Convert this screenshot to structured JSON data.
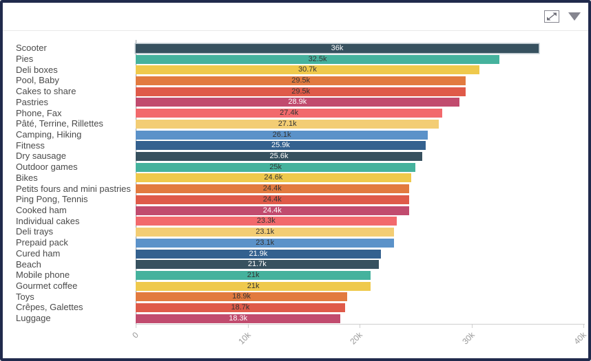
{
  "header": {
    "icons": [
      {
        "name": "maximize-icon"
      },
      {
        "name": "caret-down-icon"
      }
    ]
  },
  "colors": {
    "frame_border": "#202a4c",
    "axis_line": "#cfcfcf",
    "axis_vertical_line": "#9aa0a6",
    "axis_text": "#999999",
    "category_text": "#4a4a4a",
    "icon_gray": "#85858f",
    "highlight_stroke": "#b7c3ca"
  },
  "chart_data": {
    "type": "bar",
    "orientation": "horizontal",
    "title": "",
    "xlabel": "",
    "ylabel": "",
    "grid": false,
    "legend": "none",
    "value_label_position": "centered-on-bar",
    "x_axis": {
      "min": 0,
      "max": 40000,
      "ticks": [
        "0",
        "10k",
        "20k",
        "30k",
        "40k"
      ],
      "tick_values": [
        0,
        10000,
        20000,
        30000,
        40000
      ],
      "tick_rotation_deg": -45
    },
    "bars": [
      {
        "category": "Scooter",
        "value": 36000,
        "label": "36k",
        "color": "#37515f",
        "label_color": "#ffffff",
        "highlighted": true
      },
      {
        "category": "Pies",
        "value": 32500,
        "label": "32.5k",
        "color": "#45b29d",
        "label_color": "#333333",
        "highlighted": false
      },
      {
        "category": "Deli boxes",
        "value": 30700,
        "label": "30.7k",
        "color": "#efc94c",
        "label_color": "#333333",
        "highlighted": false
      },
      {
        "category": "Pool, Baby",
        "value": 29500,
        "label": "29.5k",
        "color": "#e27a3f",
        "label_color": "#333333",
        "highlighted": false
      },
      {
        "category": "Cakes to share",
        "value": 29500,
        "label": "29.5k",
        "color": "#df5a49",
        "label_color": "#333333",
        "highlighted": false
      },
      {
        "category": "Pastries",
        "value": 28900,
        "label": "28.9k",
        "color": "#c14b6e",
        "label_color": "#ffffff",
        "highlighted": false
      },
      {
        "category": "Phone, Fax",
        "value": 27400,
        "label": "27.4k",
        "color": "#f2696c",
        "label_color": "#333333",
        "highlighted": false
      },
      {
        "category": "Pâté, Terrine, Rillettes",
        "value": 27100,
        "label": "27.1k",
        "color": "#f3cd74",
        "label_color": "#333333",
        "highlighted": false
      },
      {
        "category": "Camping, Hiking",
        "value": 26100,
        "label": "26.1k",
        "color": "#5b92c9",
        "label_color": "#333333",
        "highlighted": false
      },
      {
        "category": "Fitness",
        "value": 25900,
        "label": "25.9k",
        "color": "#34618f",
        "label_color": "#ffffff",
        "highlighted": false
      },
      {
        "category": "Dry sausage",
        "value": 25600,
        "label": "25.6k",
        "color": "#37515f",
        "label_color": "#ffffff",
        "highlighted": false
      },
      {
        "category": "Outdoor games",
        "value": 25000,
        "label": "25k",
        "color": "#45b29d",
        "label_color": "#333333",
        "highlighted": false
      },
      {
        "category": "Bikes",
        "value": 24600,
        "label": "24.6k",
        "color": "#efc94c",
        "label_color": "#333333",
        "highlighted": false
      },
      {
        "category": "Petits fours and mini pastries",
        "value": 24400,
        "label": "24.4k",
        "color": "#e27a3f",
        "label_color": "#333333",
        "highlighted": false
      },
      {
        "category": "Ping Pong, Tennis",
        "value": 24400,
        "label": "24.4k",
        "color": "#df5a49",
        "label_color": "#333333",
        "highlighted": false
      },
      {
        "category": "Cooked ham",
        "value": 24400,
        "label": "24.4k",
        "color": "#c14b6e",
        "label_color": "#ffffff",
        "highlighted": false
      },
      {
        "category": "Individual cakes",
        "value": 23300,
        "label": "23.3k",
        "color": "#f2696c",
        "label_color": "#333333",
        "highlighted": false
      },
      {
        "category": "Deli trays",
        "value": 23100,
        "label": "23.1k",
        "color": "#f3cd74",
        "label_color": "#333333",
        "highlighted": false
      },
      {
        "category": "Prepaid pack",
        "value": 23100,
        "label": "23.1k",
        "color": "#5b92c9",
        "label_color": "#333333",
        "highlighted": false
      },
      {
        "category": "Cured ham",
        "value": 21900,
        "label": "21.9k",
        "color": "#34618f",
        "label_color": "#ffffff",
        "highlighted": false
      },
      {
        "category": "Beach",
        "value": 21700,
        "label": "21.7k",
        "color": "#37515f",
        "label_color": "#ffffff",
        "highlighted": false
      },
      {
        "category": "Mobile phone",
        "value": 21000,
        "label": "21k",
        "color": "#45b29d",
        "label_color": "#333333",
        "highlighted": false
      },
      {
        "category": "Gourmet coffee",
        "value": 21000,
        "label": "21k",
        "color": "#efc94c",
        "label_color": "#333333",
        "highlighted": false
      },
      {
        "category": "Toys",
        "value": 18900,
        "label": "18.9k",
        "color": "#e27a3f",
        "label_color": "#333333",
        "highlighted": false
      },
      {
        "category": "Crêpes, Galettes",
        "value": 18700,
        "label": "18.7k",
        "color": "#df5a49",
        "label_color": "#333333",
        "highlighted": false
      },
      {
        "category": "Luggage",
        "value": 18300,
        "label": "18.3k",
        "color": "#c14b6e",
        "label_color": "#ffffff",
        "highlighted": false
      }
    ]
  }
}
